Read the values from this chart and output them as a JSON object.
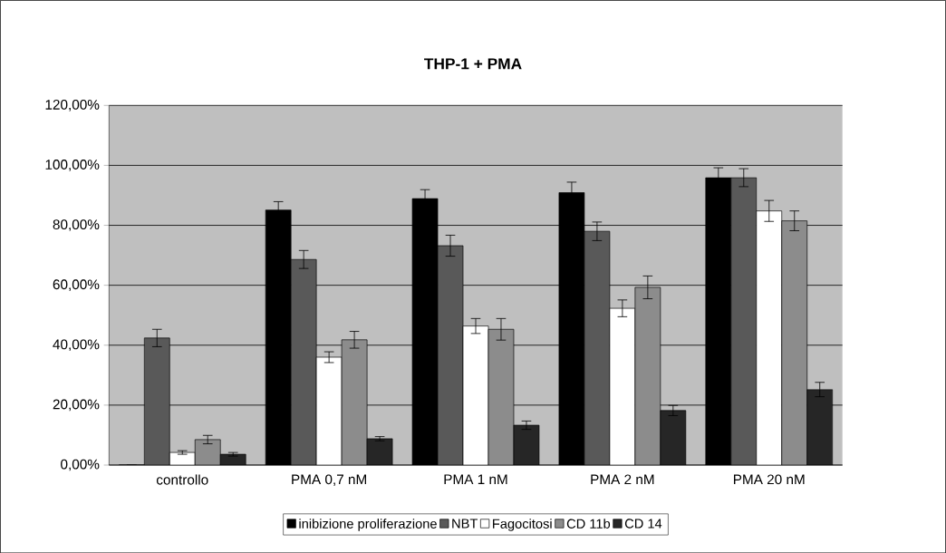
{
  "chart_data": {
    "type": "bar",
    "title": "THP-1 + PMA",
    "categories": [
      "controllo",
      "PMA 0,7 nM",
      "PMA 1 nM",
      "PMA 2 nM",
      "PMA 20 nM"
    ],
    "series": [
      {
        "name": "inibizione proliferazione",
        "color": "#000000",
        "values": [
          0,
          85.1,
          88.9,
          90.9,
          95.9
        ],
        "errors": [
          null,
          2.8,
          3.0,
          3.5,
          3.3
        ]
      },
      {
        "name": "NBT",
        "color": "#595959",
        "values": [
          42.4,
          68.6,
          73.2,
          78.0,
          95.9
        ],
        "errors": [
          2.9,
          3.0,
          3.5,
          3.1,
          3.0
        ]
      },
      {
        "name": "Fagocitosi",
        "color": "#ffffff",
        "values": [
          4.2,
          36.0,
          46.4,
          52.3,
          84.8
        ],
        "errors": [
          0.6,
          1.8,
          2.5,
          2.8,
          3.5
        ]
      },
      {
        "name": "CD 11b",
        "color": "#8c8c8c",
        "values": [
          8.5,
          41.8,
          45.3,
          59.3,
          81.5
        ],
        "errors": [
          1.4,
          2.8,
          3.6,
          3.8,
          3.3
        ]
      },
      {
        "name": "CD 14",
        "color": "#262626",
        "values": [
          3.6,
          8.8,
          13.3,
          18.2,
          25.2
        ],
        "errors": [
          0.6,
          0.7,
          1.4,
          1.7,
          2.4
        ]
      }
    ],
    "ylim": [
      0,
      120
    ],
    "yticks": [
      {
        "value": 0,
        "label": "0,00%"
      },
      {
        "value": 20,
        "label": "20,00%"
      },
      {
        "value": 40,
        "label": "40,00%"
      },
      {
        "value": 60,
        "label": "60,00%"
      },
      {
        "value": 80,
        "label": "80,00%"
      },
      {
        "value": 100,
        "label": "100,00%"
      },
      {
        "value": 120,
        "label": "120,00%"
      }
    ],
    "grid": "y",
    "legend": "bottom"
  }
}
